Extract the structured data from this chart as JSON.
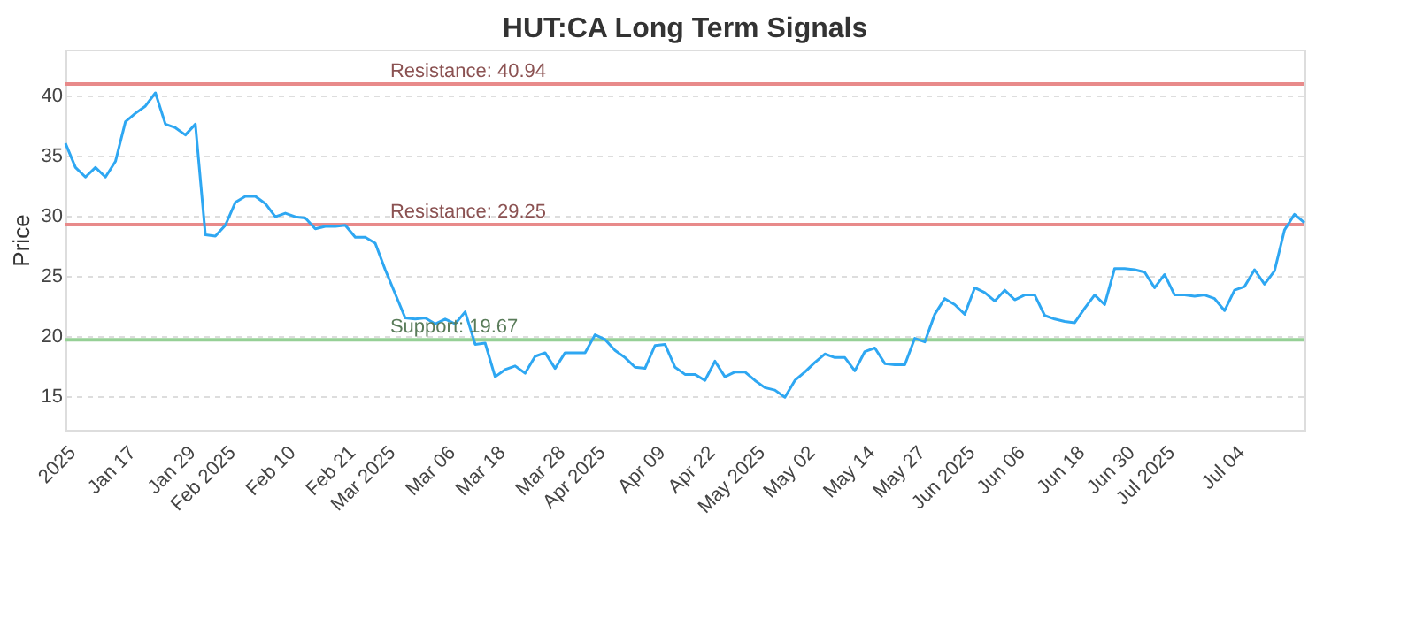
{
  "chart_data": {
    "type": "line",
    "title": "HUT:CA Long Term Signals",
    "ylabel": "Price",
    "categories": [
      null,
      "2025",
      null,
      null,
      null,
      null,
      null,
      "Jan 17",
      null,
      null,
      null,
      null,
      null,
      "Jan 29",
      null,
      null,
      null,
      "Feb 2025",
      null,
      null,
      null,
      null,
      null,
      "Feb 10",
      null,
      null,
      null,
      null,
      null,
      "Feb 21",
      null,
      null,
      null,
      "Mar 2025",
      null,
      null,
      null,
      null,
      null,
      "Mar 06",
      null,
      null,
      null,
      null,
      "Mar 18",
      null,
      null,
      null,
      null,
      null,
      "Mar 28",
      null,
      null,
      null,
      "Apr 2025",
      null,
      null,
      null,
      null,
      null,
      "Apr 09",
      null,
      null,
      null,
      null,
      "Apr 22",
      null,
      null,
      null,
      null,
      "May 2025",
      null,
      null,
      null,
      null,
      "May 02",
      null,
      null,
      null,
      null,
      null,
      "May 14",
      null,
      null,
      null,
      null,
      "May 27",
      null,
      null,
      null,
      null,
      "Jun 2025",
      null,
      null,
      null,
      null,
      "Jun 06",
      null,
      null,
      null,
      null,
      null,
      "Jun 18",
      null,
      null,
      null,
      null,
      "Jun 30",
      null,
      null,
      null,
      "Jul 2025",
      null,
      null,
      null,
      null,
      null,
      null,
      "Jul 04",
      null,
      null,
      null,
      null,
      null,
      null
    ],
    "series": [
      {
        "color": "#2ea7f2",
        "values": [
          36,
          34,
          33.2,
          34,
          33.2,
          34.5,
          37.8,
          38.5,
          39.1,
          40.2,
          37.6,
          37.3,
          36.7,
          37.6,
          28.4,
          28.3,
          29.2,
          31.1,
          31.6,
          31.6,
          31,
          29.9,
          30.2,
          29.9,
          29.8,
          28.9,
          29.1,
          29.1,
          29.2,
          28.2,
          28.2,
          27.7,
          25.5,
          23.5,
          21.5,
          21.4,
          21.5,
          21,
          21.4,
          21,
          22,
          19.3,
          19.4,
          16.6,
          17.2,
          17.5,
          16.9,
          18.3,
          18.6,
          17.3,
          18.6,
          18.6,
          18.6,
          20.1,
          19.7,
          18.8,
          18.2,
          17.4,
          17.3,
          19.2,
          19.3,
          17.4,
          16.8,
          16.8,
          16.3,
          17.9,
          16.6,
          17,
          17,
          16.3,
          15.7,
          15.5,
          14.9,
          16.3,
          17,
          17.8,
          18.5,
          18.2,
          18.2,
          17.1,
          18.7,
          19,
          17.7,
          17.6,
          17.6,
          19.8,
          19.5,
          21.8,
          23.1,
          22.6,
          21.8,
          24,
          23.6,
          22.9,
          23.8,
          23,
          23.4,
          23.4,
          21.7,
          21.4,
          21.2,
          21.1,
          22.3,
          23.4,
          22.6,
          25.6,
          25.6,
          25.5,
          25.3,
          24,
          25.1,
          23.4,
          23.4,
          23.3,
          23.4,
          23.1,
          22.1,
          23.8,
          24.1,
          25.5,
          24.3,
          25.4,
          28.8,
          30.1,
          29.4
        ]
      }
    ],
    "ylim": [
      12.2,
      43.8
    ],
    "yticks": [
      15,
      20,
      25,
      30,
      35,
      40
    ],
    "grid": "y",
    "marker": "none",
    "line_style": "solid",
    "ref_lines": [
      {
        "axis": "y",
        "value": 40.94,
        "label": "Resistance: 40.94",
        "color": "#e88a8a"
      },
      {
        "axis": "y",
        "value": 29.25,
        "label": "Resistance: 29.25",
        "color": "#e88a8a"
      },
      {
        "axis": "y",
        "value": 19.67,
        "label": "Support: 19.67",
        "color": "#96d096"
      }
    ]
  }
}
